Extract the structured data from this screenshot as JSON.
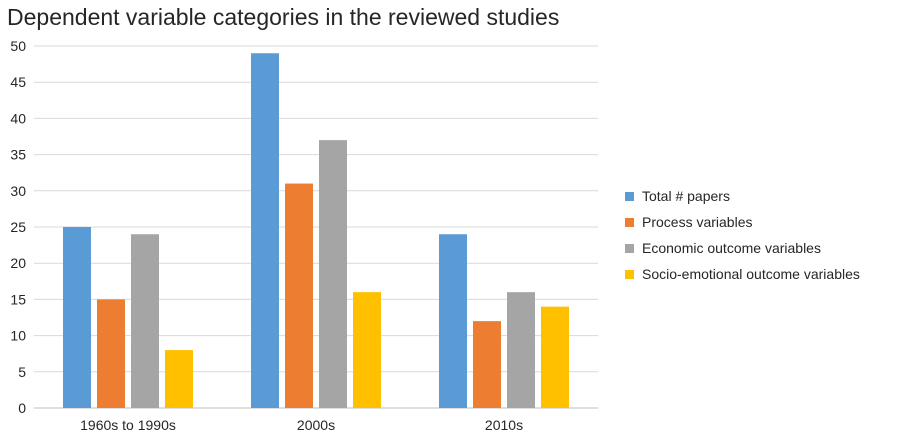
{
  "chart_data": {
    "type": "bar",
    "title": "Dependent variable categories in the reviewed studies",
    "categories": [
      "1960s to 1990s",
      "2000s",
      "2010s"
    ],
    "series": [
      {
        "name": "Total # papers",
        "values": [
          25,
          49,
          24
        ],
        "color": "#5B9BD5"
      },
      {
        "name": "Process variables",
        "values": [
          15,
          31,
          12
        ],
        "color": "#ED7D31"
      },
      {
        "name": "Economic outcome variables",
        "values": [
          24,
          37,
          16
        ],
        "color": "#A5A5A5"
      },
      {
        "name": "Socio-emotional outcome variables",
        "values": [
          8,
          16,
          14
        ],
        "color": "#FFC000"
      }
    ],
    "ylim": [
      0,
      50
    ],
    "yticks": [
      0,
      5,
      10,
      15,
      20,
      25,
      30,
      35,
      40,
      45,
      50
    ],
    "grid": true,
    "legend_position": "right"
  }
}
